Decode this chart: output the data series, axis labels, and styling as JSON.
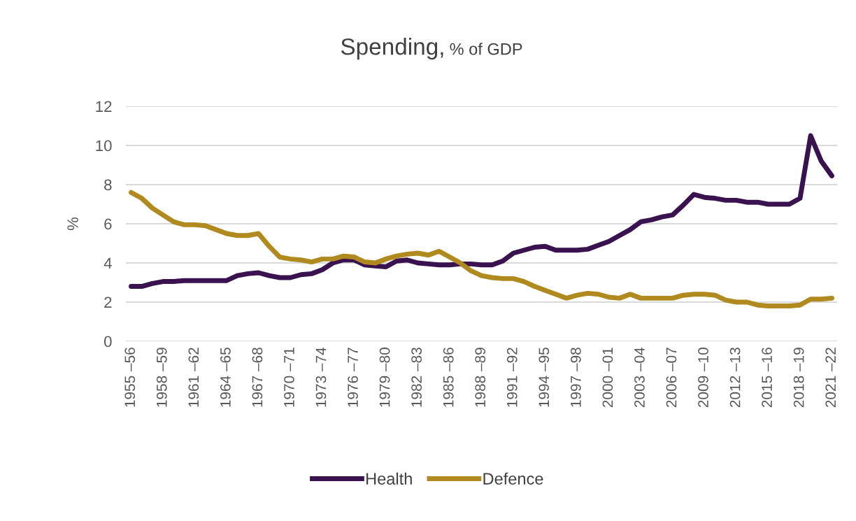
{
  "chart_data": {
    "type": "line",
    "title": "Spending,",
    "subtitle": "% of GDP",
    "ylabel": "%",
    "categories": [
      "1955 –56",
      null,
      null,
      "1958 –59",
      null,
      null,
      "1961 –62",
      null,
      null,
      "1964 –65",
      null,
      null,
      "1967 –68",
      null,
      null,
      "1970 –71",
      null,
      null,
      "1973 –74",
      null,
      null,
      "1976 –77",
      null,
      null,
      "1979 –80",
      null,
      null,
      "1982 –83",
      null,
      null,
      "1985 –86",
      null,
      null,
      "1988 –89",
      null,
      null,
      "1991 –92",
      null,
      null,
      "1994 –95",
      null,
      null,
      "1997 –98",
      null,
      null,
      "2000 –01",
      null,
      null,
      "2003 –04",
      null,
      null,
      "2006 –07",
      null,
      null,
      "2009 –10",
      null,
      null,
      "2012 –13",
      null,
      null,
      "2015 –16",
      null,
      null,
      "2018 –19",
      null,
      null,
      "2021 –22"
    ],
    "series": [
      {
        "name": "Health",
        "color": "#3a1250",
        "values": [
          2.8,
          2.8,
          2.95,
          3.05,
          3.05,
          3.1,
          3.1,
          3.1,
          3.1,
          3.1,
          3.35,
          3.45,
          3.5,
          3.35,
          3.25,
          3.25,
          3.4,
          3.45,
          3.65,
          4.0,
          4.15,
          4.15,
          3.9,
          3.85,
          3.8,
          4.1,
          4.15,
          4.0,
          3.95,
          3.9,
          3.9,
          3.95,
          3.95,
          3.9,
          3.9,
          4.1,
          4.5,
          4.65,
          4.8,
          4.85,
          4.65,
          4.65,
          4.65,
          4.7,
          4.9,
          5.1,
          5.4,
          5.7,
          6.1,
          6.2,
          6.35,
          6.45,
          6.95,
          7.5,
          7.35,
          7.3,
          7.2,
          7.2,
          7.1,
          7.1,
          7.0,
          7.0,
          7.0,
          7.3,
          10.5,
          9.2,
          8.45
        ]
      },
      {
        "name": "Defence",
        "color": "#b08a1e",
        "values": [
          7.6,
          7.3,
          6.8,
          6.45,
          6.1,
          5.95,
          5.95,
          5.9,
          5.7,
          5.5,
          5.4,
          5.4,
          5.5,
          4.85,
          4.3,
          4.2,
          4.15,
          4.05,
          4.2,
          4.2,
          4.35,
          4.3,
          4.05,
          4.0,
          4.2,
          4.35,
          4.45,
          4.5,
          4.4,
          4.6,
          4.3,
          4.0,
          3.6,
          3.35,
          3.25,
          3.2,
          3.2,
          3.05,
          2.8,
          2.6,
          2.4,
          2.2,
          2.35,
          2.45,
          2.4,
          2.25,
          2.2,
          2.4,
          2.2,
          2.2,
          2.2,
          2.2,
          2.35,
          2.4,
          2.4,
          2.35,
          2.1,
          2.0,
          2.0,
          1.85,
          1.8,
          1.8,
          1.8,
          1.85,
          2.15,
          2.15,
          2.2
        ]
      }
    ],
    "ylim": [
      0,
      12
    ],
    "yticks": [
      0,
      2,
      4,
      6,
      8,
      10,
      12
    ],
    "grid": "y",
    "legend": "bottom",
    "marker": "none",
    "line_style": "solid"
  }
}
